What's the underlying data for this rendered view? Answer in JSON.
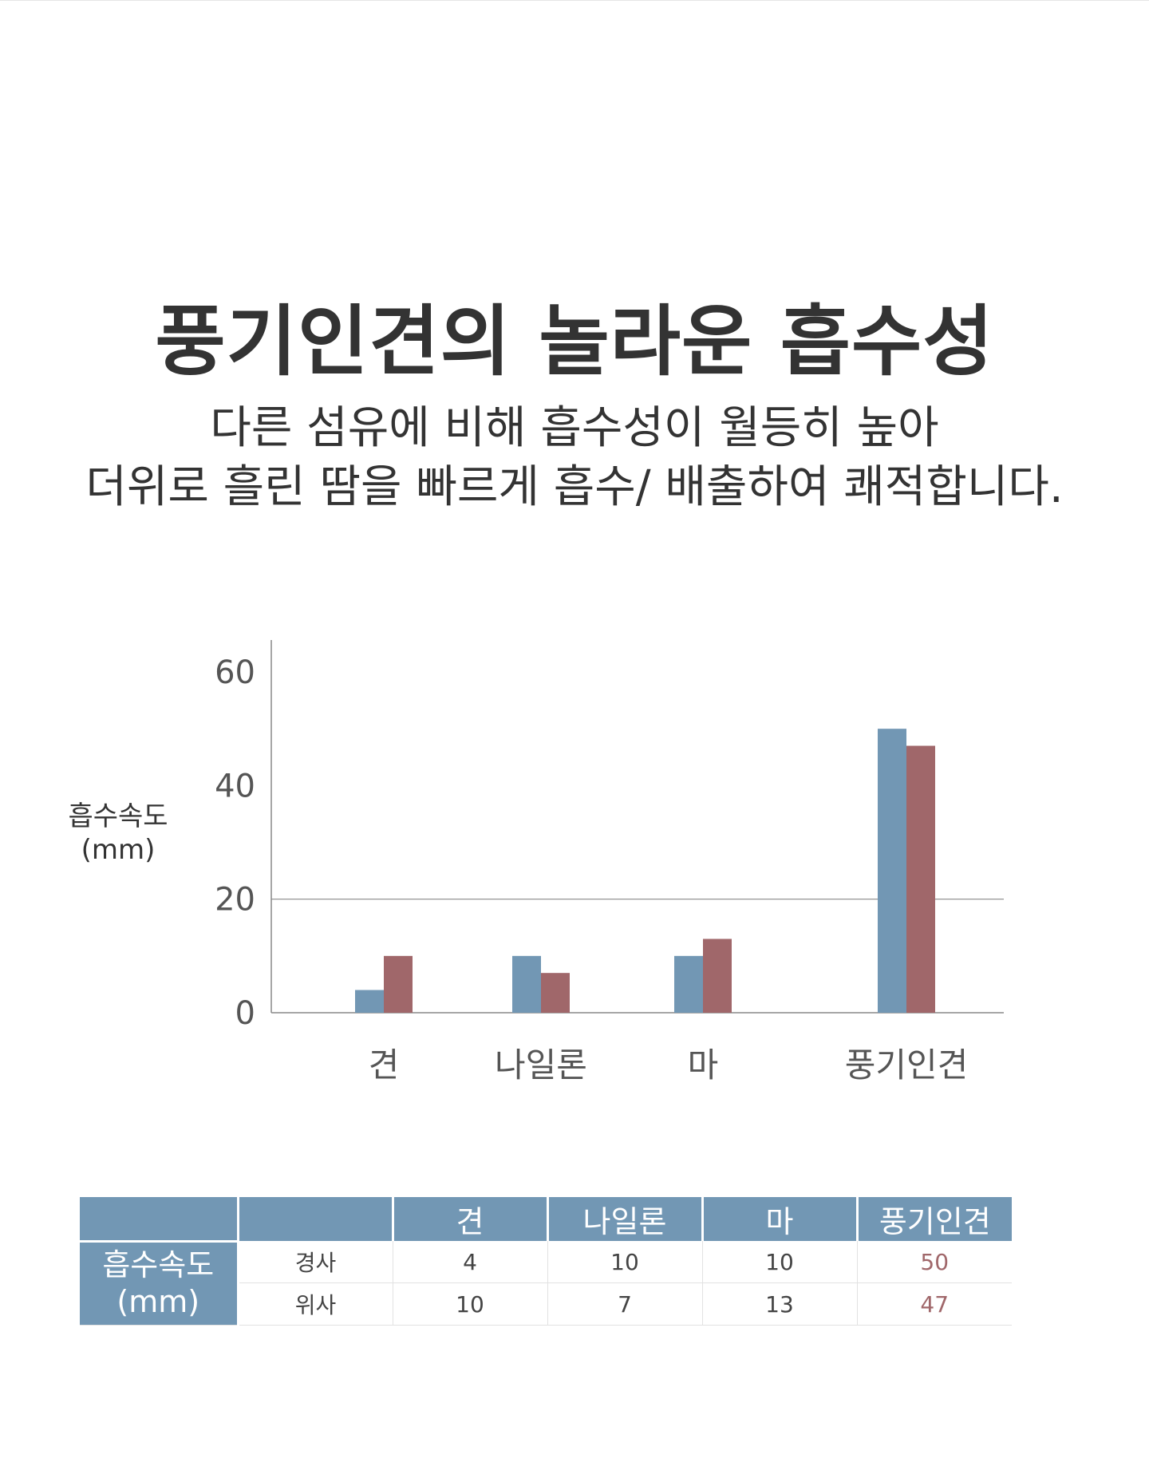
{
  "header": {
    "title": "풍기인견의 놀라운 흡수성",
    "subtitle_line1": "다른 섬유에 비해 흡수성이 월등히 높아",
    "subtitle_line2": "더위로 흘린 땀을 빠르게 흡수/ 배출하여 쾌적합니다."
  },
  "chart_data": {
    "type": "bar",
    "ylabel_line1": "흡수속도",
    "ylabel_line2": "(mm)",
    "categories": [
      "견",
      "나일론",
      "마",
      "풍기인견"
    ],
    "series": [
      {
        "key": "warp",
        "values": [
          4,
          10,
          10,
          50
        ],
        "color": "#7297b4"
      },
      {
        "key": "weft",
        "values": [
          10,
          7,
          13,
          47
        ],
        "color": "#a0676a"
      }
    ],
    "ylim": [
      0,
      60
    ],
    "yticks": [
      0,
      20,
      40,
      60
    ],
    "reference_line": 20,
    "legend": "none"
  },
  "table": {
    "headers": [
      "",
      "",
      "견",
      "나일론",
      "마",
      "풍기인견"
    ],
    "group_label_line1": "흡수속도",
    "group_label_line2": "(mm)",
    "rows": [
      {
        "label": "경사",
        "values": [
          "4",
          "10",
          "10",
          "50"
        ]
      },
      {
        "label": "위사",
        "values": [
          "10",
          "7",
          "13",
          "47"
        ]
      }
    ],
    "highlight_color": "#a0676a",
    "header_color": "#7297b4"
  }
}
